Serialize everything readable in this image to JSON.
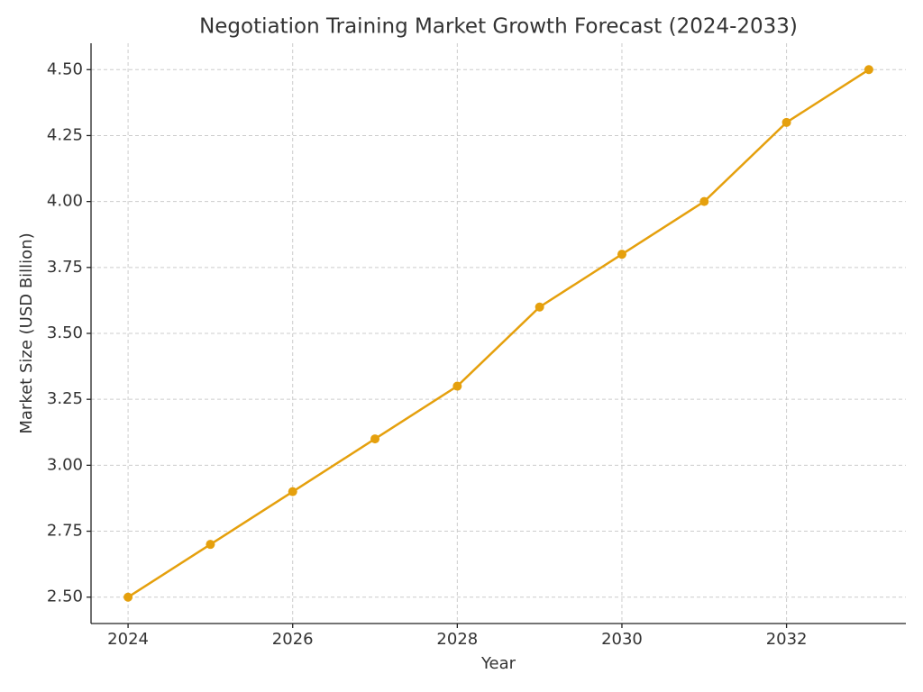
{
  "chart_data": {
    "type": "line",
    "title": "Negotiation Training Market Growth Forecast (2024-2033)",
    "x_label": "Year",
    "y_label": "Market Size (USD Billion)",
    "x": [
      2024,
      2025,
      2026,
      2027,
      2028,
      2029,
      2030,
      2031,
      2032,
      2033
    ],
    "values": [
      2.5,
      2.7,
      2.9,
      3.1,
      3.3,
      3.6,
      3.8,
      4.0,
      4.3,
      4.5
    ],
    "color": "#e5a00d",
    "xlim": [
      2023.55,
      2033.45
    ],
    "xticks": [
      2024,
      2026,
      2028,
      2030,
      2032
    ],
    "ylim": [
      2.4,
      4.6
    ],
    "yticks": [
      {
        "value": 2.5,
        "label": "2.50"
      },
      {
        "value": 2.75,
        "label": "2.75"
      },
      {
        "value": 3.0,
        "label": "3.00"
      },
      {
        "value": 3.25,
        "label": "3.25"
      },
      {
        "value": 3.5,
        "label": "3.50"
      },
      {
        "value": 3.75,
        "label": "3.75"
      },
      {
        "value": 4.0,
        "label": "4.00"
      },
      {
        "value": 4.25,
        "label": "4.25"
      },
      {
        "value": 4.5,
        "label": "4.50"
      }
    ],
    "grid": true
  }
}
